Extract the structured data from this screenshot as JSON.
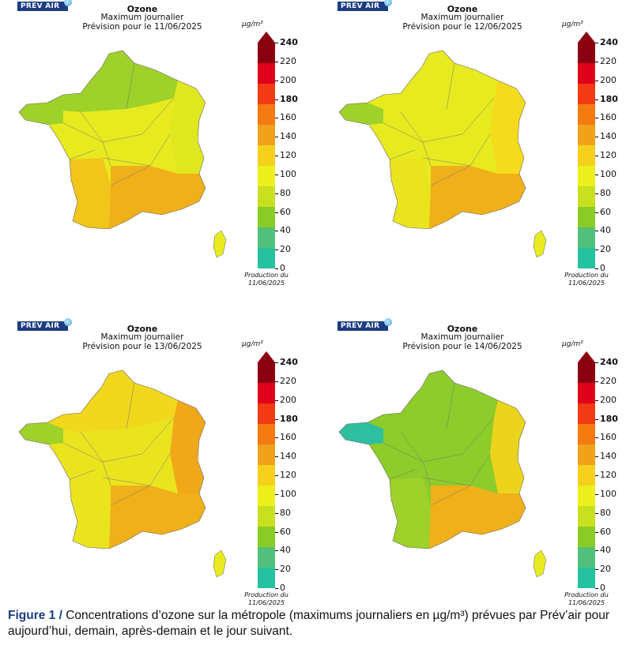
{
  "panels": [
    {
      "logo": "PREV AIR",
      "title": "Ozone",
      "subtitle": "Maximum journalier",
      "forecast": "Prévision pour le 11/06/2025",
      "unit": "µg/m³",
      "production": "Production du",
      "production_date": "11/06/2025",
      "regions": {
        "north": "#9ed12a",
        "center": "#e7ea1f",
        "southwest": "#f1c51a",
        "southeast": "#f0b01a",
        "east": "#dfe71f",
        "brittany": "#9ed12a",
        "corsica": "#e7ea1f"
      }
    },
    {
      "logo": "PREV AIR",
      "title": "Ozone",
      "subtitle": "Maximum journalier",
      "forecast": "Prévision pour le 12/06/2025",
      "unit": "µg/m³",
      "production": "Production du",
      "production_date": "11/06/2025",
      "regions": {
        "north": "#e7ea1f",
        "center": "#e7ea1f",
        "southwest": "#eae41f",
        "southeast": "#f0b01a",
        "east": "#f4dc1c",
        "brittany": "#9ed12a",
        "corsica": "#e7ea1f"
      }
    },
    {
      "logo": "PREV AIR",
      "title": "Ozone",
      "subtitle": "Maximum journalier",
      "forecast": "Prévision pour le 13/06/2025",
      "unit": "µg/m³",
      "production": "Production du",
      "production_date": "11/06/2025",
      "regions": {
        "north": "#f1d81c",
        "center": "#eae41f",
        "southwest": "#eae41f",
        "southeast": "#f0b01a",
        "east": "#f0a81a",
        "brittany": "#9ed12a",
        "corsica": "#e7ea1f"
      }
    },
    {
      "logo": "PREV AIR",
      "title": "Ozone",
      "subtitle": "Maximum journalier",
      "forecast": "Prévision pour le 14/06/2025",
      "unit": "µg/m³",
      "production": "Production du",
      "production_date": "11/06/2025",
      "regions": {
        "north": "#8dcc2a",
        "center": "#8dcc2a",
        "southwest": "#9ed12a",
        "southeast": "#f0b01a",
        "east": "#ecd41c",
        "brittany": "#2fbfa0",
        "corsica": "#e7ea1f"
      }
    }
  ],
  "colorbar": {
    "ticks": [
      "240",
      "220",
      "200",
      "180",
      "160",
      "140",
      "120",
      "100",
      "80",
      "60",
      "40",
      "20",
      "0"
    ],
    "bold_ticks": [
      "240",
      "180"
    ],
    "colors": [
      "#8a0010",
      "#e0001b",
      "#f23a14",
      "#f47b12",
      "#f0a21a",
      "#f5d11c",
      "#ecf01c",
      "#c8e01e",
      "#8bcb25",
      "#52c07a",
      "#26c2a0"
    ]
  },
  "caption": {
    "figure_label": "Figure 1 /",
    "text": " Concentrations d’ozone sur la métropole (maximums journaliers en µg/m³) prévues par Prév’air pour aujourd’hui, demain, après-demain et le jour suivant."
  }
}
